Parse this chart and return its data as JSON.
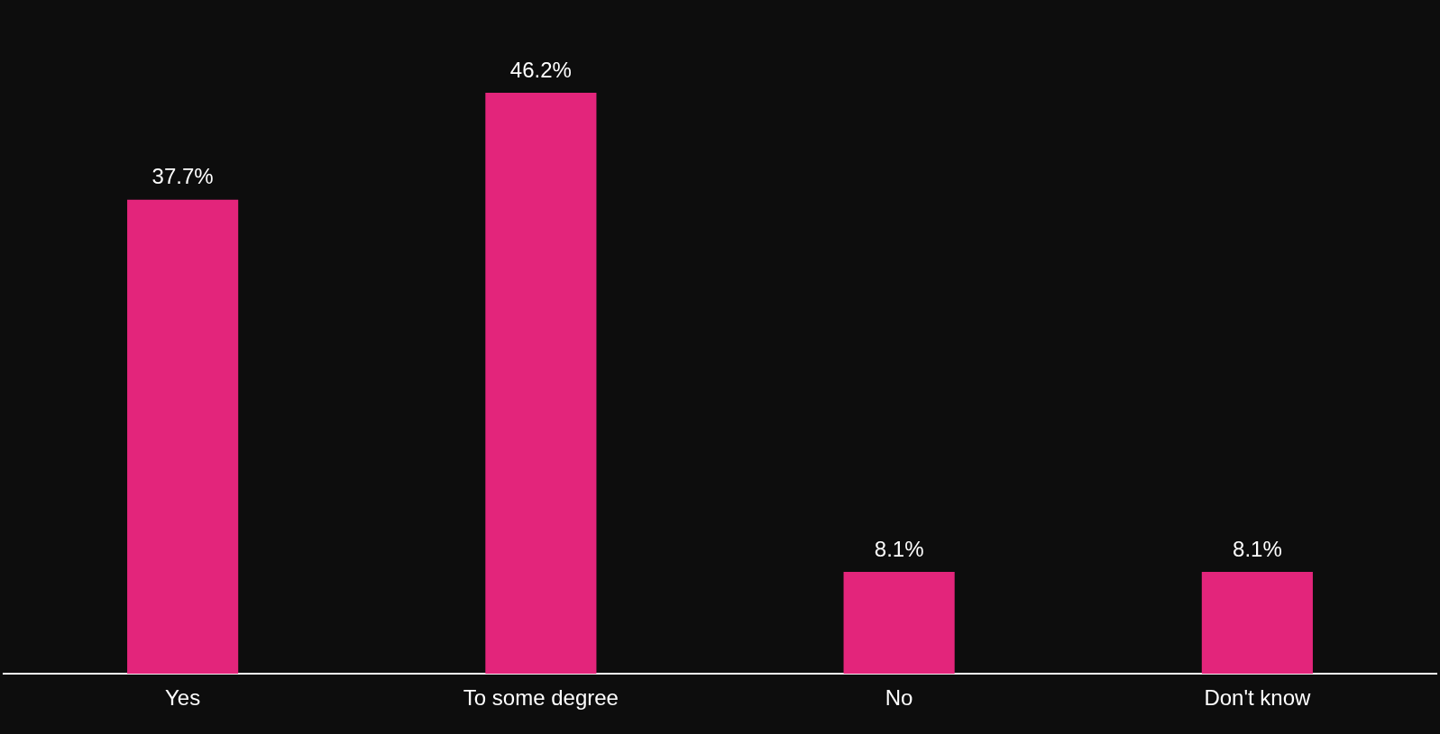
{
  "chart_data": {
    "type": "bar",
    "categories": [
      "Yes",
      "To some degree",
      "No",
      "Don't know"
    ],
    "values": [
      37.7,
      46.2,
      8.1,
      8.1
    ],
    "color": "#e3257b",
    "value_labels": [
      "37.7%",
      "46.2%",
      "8.1%",
      "8.1%"
    ],
    "legend": false
  }
}
